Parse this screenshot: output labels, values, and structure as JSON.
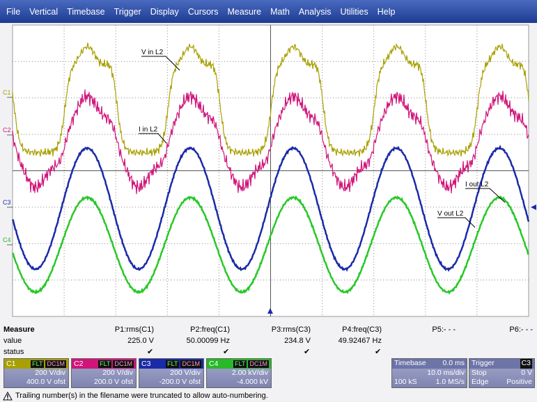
{
  "menu": {
    "items": [
      "File",
      "Vertical",
      "Timebase",
      "Trigger",
      "Display",
      "Cursors",
      "Measure",
      "Math",
      "Analysis",
      "Utilities",
      "Help"
    ]
  },
  "channel_labels": [
    "C1",
    "C2",
    "C3",
    "C4"
  ],
  "annotations": [
    "V in L2",
    "I in L2",
    "I out L2",
    "V out L2"
  ],
  "measure": {
    "title": "Measure",
    "headers": [
      "P1:rms(C1)",
      "P2:freq(C1)",
      "P3:rms(C3)",
      "P4:freq(C3)",
      "P5:- - -",
      "P6:- - -"
    ],
    "value_label": "value",
    "values": [
      "225.0 V",
      "50.00099 Hz",
      "234.8 V",
      "49.92467 Hz"
    ],
    "status_label": "status",
    "status": [
      "✔",
      "✔",
      "✔",
      "✔"
    ]
  },
  "channels": [
    {
      "name": "C1",
      "filter": "FLT",
      "coupling": "DC1M",
      "scale": "200 V/div",
      "offset": "400.0 V ofst"
    },
    {
      "name": "C2",
      "filter": "FLT",
      "coupling": "DC1M",
      "scale": "200 V/div",
      "offset": "200.0 V ofst"
    },
    {
      "name": "C3",
      "filter": "FLT",
      "coupling": "DC1M",
      "scale": "200 V/div",
      "offset": "-200.0 V ofst"
    },
    {
      "name": "C4",
      "filter": "FLT",
      "coupling": "DC1M",
      "scale": "2.00 kV/div",
      "offset": "-4.000 kV"
    }
  ],
  "timebase": {
    "title": "Timebase",
    "delay": "0.0 ms",
    "scale": "10.0 ms/div",
    "samples": "100 kS",
    "rate": "1.0 MS/s"
  },
  "trigger": {
    "title": "Trigger",
    "source": "C3",
    "mode": "Stop",
    "level": "0 V",
    "type": "Edge",
    "slope": "Positive"
  },
  "footer": {
    "message": "Trailing number(s) in the filename were truncated to allow auto-numbering."
  }
}
